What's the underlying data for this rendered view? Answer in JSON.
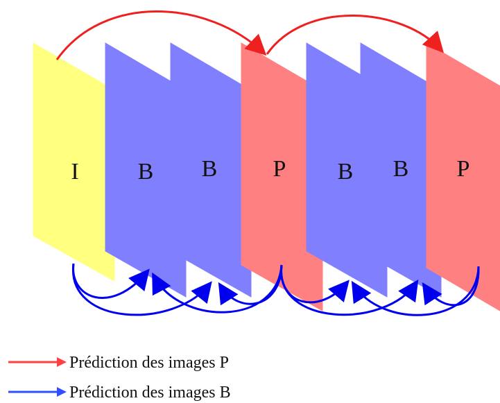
{
  "frames": [
    {
      "label": "I",
      "type": "I",
      "color": "#ffff80"
    },
    {
      "label": "B",
      "type": "B",
      "color": "#8080ff"
    },
    {
      "label": "B",
      "type": "B",
      "color": "#8080ff"
    },
    {
      "label": "P",
      "type": "P",
      "color": "#ff8080"
    },
    {
      "label": "B",
      "type": "B",
      "color": "#8080ff"
    },
    {
      "label": "B",
      "type": "B",
      "color": "#8080ff"
    },
    {
      "label": "P",
      "type": "P",
      "color": "#ff8080"
    }
  ],
  "legend": {
    "p_prediction": {
      "text": "Prédiction des images P",
      "color": "#ff4040"
    },
    "b_prediction": {
      "text": "Prédiction des images B",
      "color": "#3050ff"
    }
  },
  "arrow_colors": {
    "p_arrow": "#ee2020",
    "b_arrow": "#0000ee"
  }
}
